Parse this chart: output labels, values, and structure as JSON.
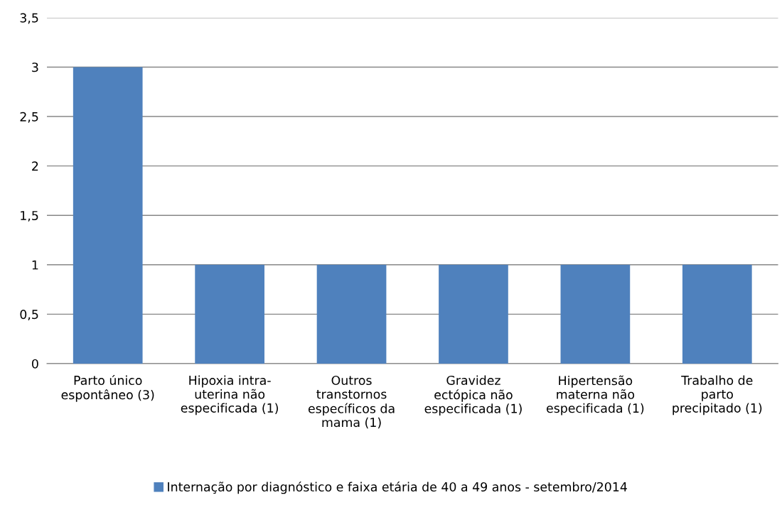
{
  "chart_data": {
    "type": "bar",
    "categories": [
      "Parto único\nespontâneo (3)",
      "Hipoxia intra-\nuterina não\nespecificada (1)",
      "Outros\ntranstornos\nespecíficos da\nmama (1)",
      "Gravidez\nectópica não\nespecificada (1)",
      "Hipertensão\nmaterna não\nespecificada (1)",
      "Trabalho de\nparto\nprecipitado (1)"
    ],
    "series": [
      {
        "name": "Internação por diagnóstico e faixa etária de 40 a 49 anos - setembro/2014",
        "color": "#4f81bd",
        "values": [
          3,
          1,
          1,
          1,
          1,
          1
        ]
      }
    ],
    "ylim": [
      0,
      3.5
    ],
    "yticks": [
      0,
      {
        "value": 0.5,
        "label": "0,5"
      },
      1,
      {
        "value": 1.5,
        "label": "1,5"
      },
      2,
      {
        "value": 2.5,
        "label": "2,5"
      },
      3,
      {
        "value": 3.5,
        "label": "3,5"
      }
    ],
    "grid": "y",
    "legend": "bottom"
  }
}
